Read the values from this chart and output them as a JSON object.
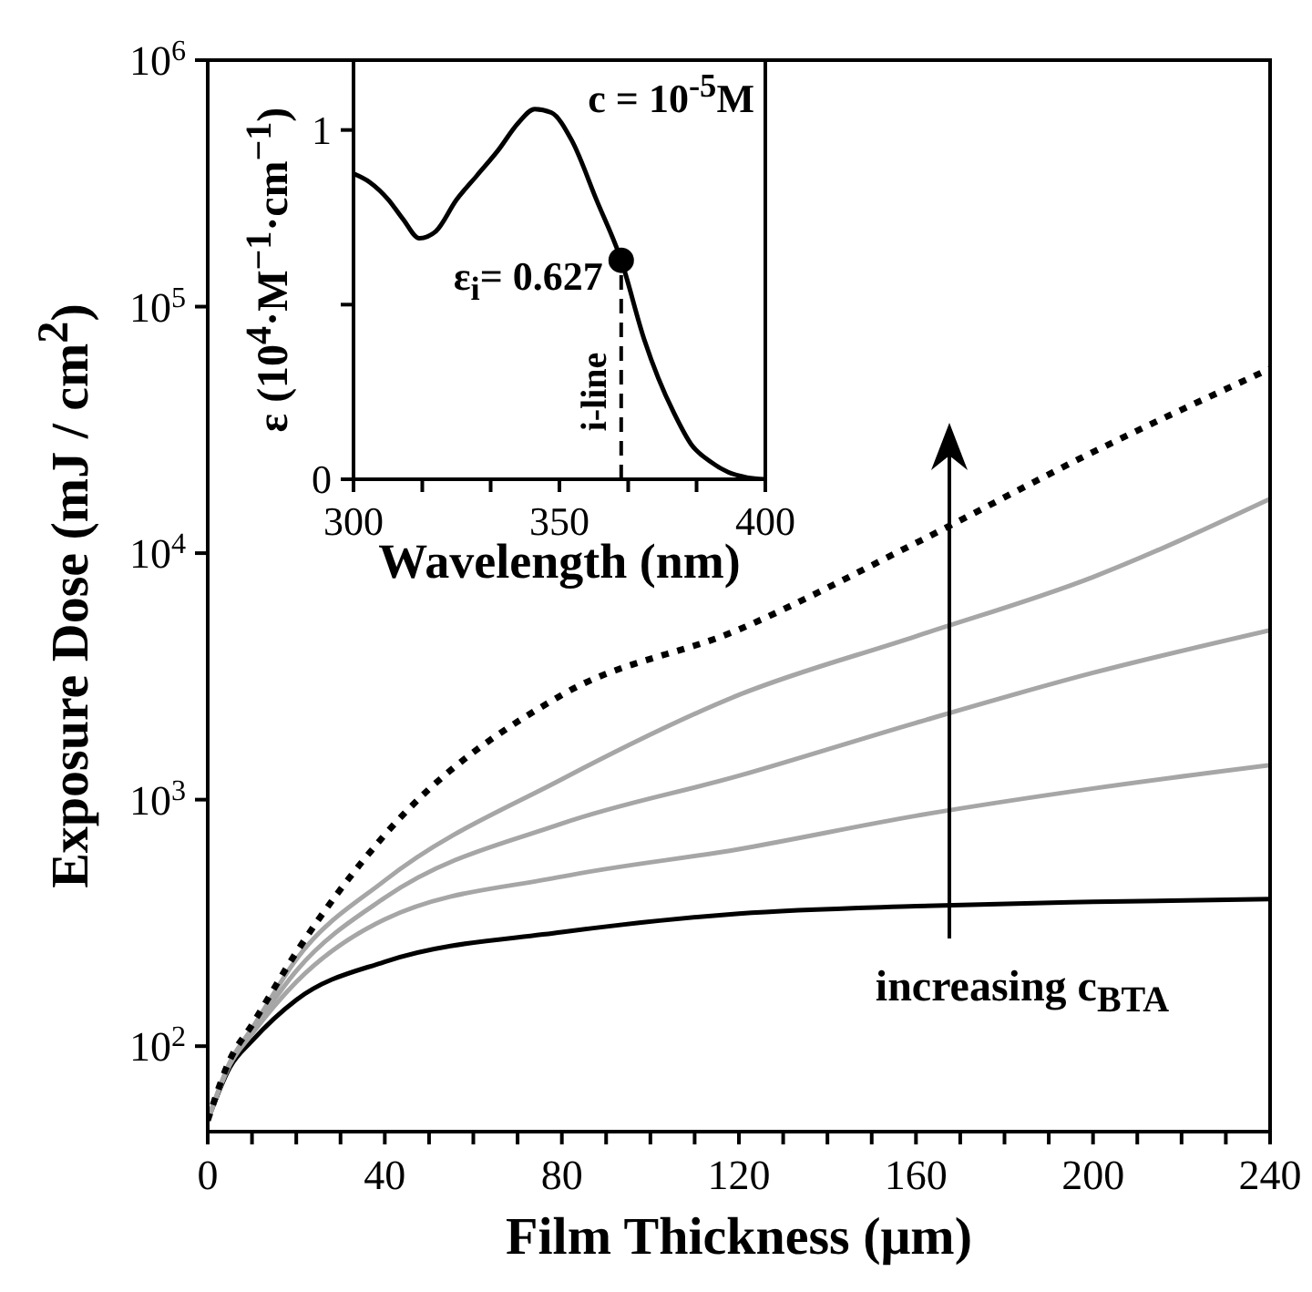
{
  "chart_data": [
    {
      "type": "line",
      "xlabel": "Film Thickness (μm)",
      "ylabel": "Exposure Dose (mJ / cm$^{2}$)",
      "log": "y",
      "x": [
        0,
        5,
        10,
        20,
        40,
        80,
        120,
        160,
        200,
        240
      ],
      "series": [
        {
          "color": "#000000",
          "values": [
            50,
            82,
            105,
            154,
            220,
            290,
            345,
            370,
            385,
            395
          ]
        },
        {
          "color": "#a6a6a6",
          "values": [
            50,
            84,
            112,
            182,
            327,
            487,
            630,
            860,
            1110,
            1380
          ]
        },
        {
          "color": "#a6a6a6",
          "values": [
            50,
            85,
            115,
            202,
            400,
            800,
            1250,
            2050,
            3270,
            4870
          ]
        },
        {
          "color": "#a6a6a6",
          "values": [
            50,
            86,
            118,
            225,
            470,
            1210,
            2660,
            4600,
            8000,
            16600
          ]
        },
        {
          "color": "#000000",
          "values": [
            50,
            88,
            122,
            240,
            720,
            2660,
            4900,
            11000,
            25700,
            56000
          ],
          "line_style": "dotted"
        }
      ],
      "xlim": [
        0,
        240
      ],
      "xticks": [
        0,
        {
          "value": 10,
          "label": null
        },
        {
          "value": 20,
          "label": null
        },
        {
          "value": 30,
          "label": null
        },
        40,
        {
          "value": 50,
          "label": null
        },
        {
          "value": 60,
          "label": null
        },
        {
          "value": 70,
          "label": null
        },
        80,
        {
          "value": 90,
          "label": null
        },
        {
          "value": 100,
          "label": null
        },
        {
          "value": 110,
          "label": null
        },
        120,
        {
          "value": 130,
          "label": null
        },
        {
          "value": 140,
          "label": null
        },
        {
          "value": 150,
          "label": null
        },
        160,
        {
          "value": 170,
          "label": null
        },
        {
          "value": 180,
          "label": null
        },
        {
          "value": 190,
          "label": null
        },
        200,
        {
          "value": 210,
          "label": null
        },
        {
          "value": 220,
          "label": null
        },
        {
          "value": 230,
          "label": null
        },
        240
      ],
      "ylim": [
        45,
        1000000
      ],
      "yticks": [
        {
          "value": 100,
          "label": "10$^{2}$"
        },
        {
          "value": 1000,
          "label": "10$^{3}$"
        },
        {
          "value": 10000,
          "label": "10$^{4}$"
        },
        {
          "value": 100000,
          "label": "10$^{5}$"
        },
        {
          "value": 1000000,
          "label": "10$^{6}$"
        }
      ],
      "annotations": [
        "increasing c$_{BTA}$"
      ]
    },
    {
      "type": "line",
      "xlabel": "Wavelength (nm)",
      "ylabel": "ε (10$^{4}$·M$^{−1}$·cm$^{−1}$)",
      "x": [
        300,
        304,
        308.5,
        312,
        316,
        320,
        325,
        330,
        335,
        340,
        344,
        348,
        353,
        359,
        365,
        370.6,
        374,
        377.8,
        382,
        386.7,
        391,
        395.6,
        400
      ],
      "series": [
        {
          "color": "#000000",
          "values": [
            0.875,
            0.85,
            0.8,
            0.745,
            0.69,
            0.71,
            0.8,
            0.87,
            0.94,
            1.02,
            1.06,
            1.05,
            0.97,
            0.8,
            0.627,
            0.4,
            0.29,
            0.19,
            0.1,
            0.05,
            0.02,
            0.005,
            0
          ]
        },
        {
          "type": "scatter",
          "color": "#000000",
          "marker": "circle",
          "x": [
            365
          ],
          "values": [
            0.627
          ]
        }
      ],
      "xlim": [
        300,
        400
      ],
      "xticks": [
        300,
        {
          "value": 316.7,
          "label": null
        },
        {
          "value": 333.3,
          "label": null
        },
        350,
        {
          "value": 366.7,
          "label": null
        },
        {
          "value": 383.3,
          "label": null
        },
        400
      ],
      "ylim": [
        0,
        1.2
      ],
      "yticks": [
        0,
        {
          "value": 0.5,
          "label": null
        },
        1
      ],
      "ref_lines": [
        {
          "axis": "x",
          "value": 365,
          "label": "i-line",
          "line_style": "dashed",
          "color": "#000000"
        }
      ],
      "annotations": [
        "c = 10$^{-5}$M",
        {
          "text": "ε$_{i}$= 0.627",
          "x": 365,
          "y": 0.627
        }
      ]
    }
  ]
}
